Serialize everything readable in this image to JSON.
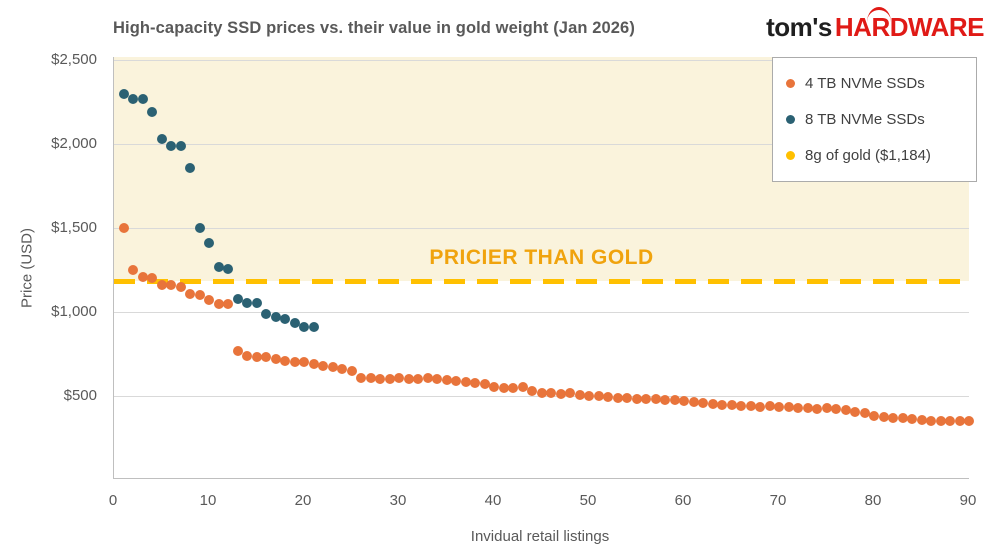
{
  "brand": {
    "name_black": "tom's",
    "name_red": "HARDWARE"
  },
  "chart_data": {
    "type": "scatter",
    "title": "High-capacity SSD prices vs. their value in gold weight (Jan 2026)",
    "xlabel": "Invidual retail listings",
    "ylabel": "Price (USD)",
    "xlim": [
      0,
      90
    ],
    "ylim": [
      0,
      2500
    ],
    "x_ticks": [
      0,
      10,
      20,
      30,
      40,
      50,
      60,
      70,
      80,
      90
    ],
    "y_ticks": [
      500,
      1000,
      1500,
      2000,
      2500
    ],
    "y_tick_labels": [
      "$500",
      "$1,000",
      "$1,500",
      "$2,000",
      "$2,500"
    ],
    "grid": "horizontal",
    "legend_position": "top-right",
    "annotation": {
      "text": "PRICIER THAN GOLD",
      "color": "#F0A30D"
    },
    "reference_line": {
      "label": "8g of gold ($1,184)",
      "value": 1184,
      "color": "#FFC000",
      "style": "dashed",
      "shaded_above_color": "#FAF3DC"
    },
    "series": [
      {
        "name": "4 TB NVMe SSDs",
        "color": "#E8743B",
        "x_start": 1,
        "y": [
          1500,
          1250,
          1210,
          1200,
          1160,
          1160,
          1150,
          1110,
          1100,
          1070,
          1050,
          1050,
          770,
          740,
          730,
          730,
          720,
          710,
          700,
          700,
          690,
          680,
          670,
          660,
          650,
          610,
          605,
          600,
          600,
          605,
          600,
          600,
          605,
          600,
          595,
          590,
          585,
          580,
          570,
          555,
          550,
          550,
          555,
          530,
          520,
          515,
          510,
          515,
          505,
          500,
          500,
          495,
          490,
          490,
          485,
          485,
          480,
          475,
          475,
          470,
          465,
          460,
          450,
          445,
          445,
          440,
          440,
          435,
          440,
          435,
          435,
          430,
          430,
          425,
          430,
          425,
          415,
          405,
          400,
          380,
          375,
          370,
          370,
          365,
          355,
          350,
          350,
          350,
          350,
          350
        ]
      },
      {
        "name": "8 TB NVMe SSDs",
        "color": "#2B6173",
        "x_start": 1,
        "y": [
          2300,
          2270,
          2270,
          2190,
          2030,
          1990,
          1990,
          1860,
          1500,
          1410,
          1270,
          1255,
          1080,
          1055,
          1055,
          990,
          970,
          960,
          935,
          910,
          910
        ]
      }
    ]
  }
}
